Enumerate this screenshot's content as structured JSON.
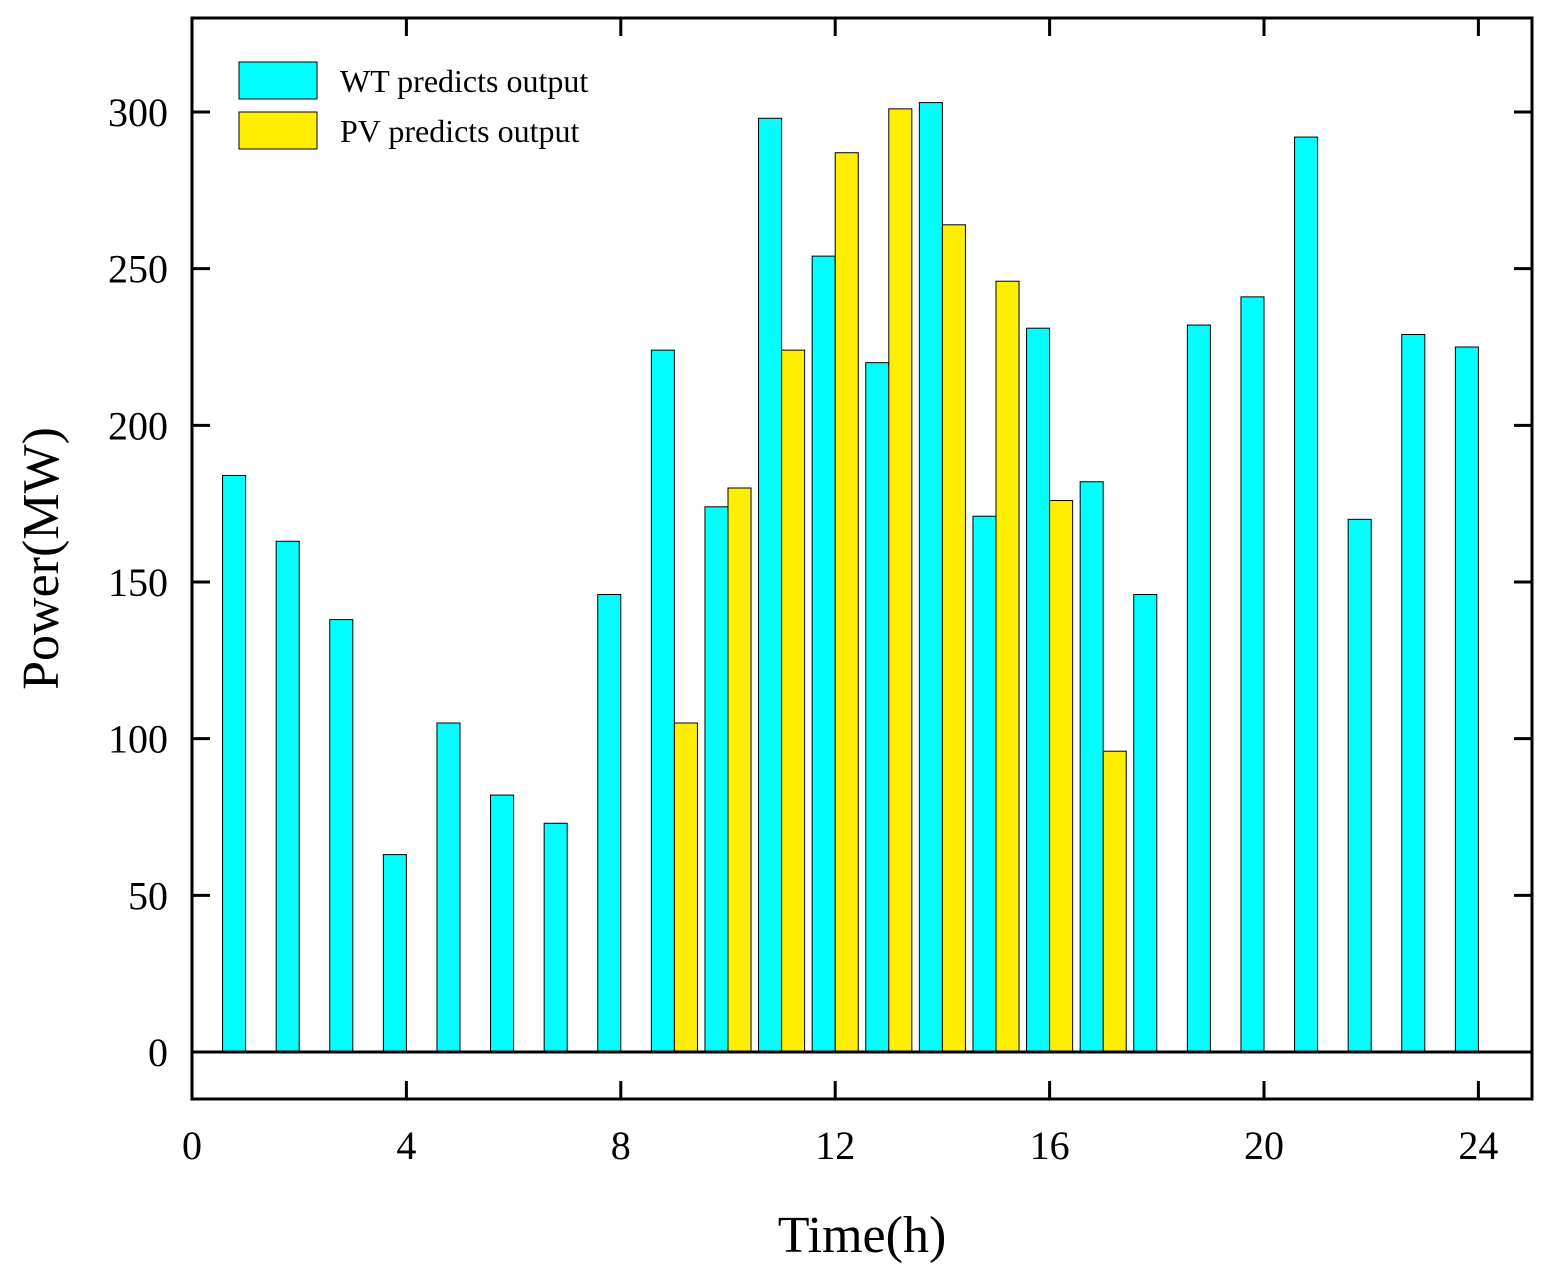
{
  "chart_data": {
    "type": "bar",
    "title": "",
    "xlabel": "Time(h)",
    "ylabel": "Power(MW)",
    "xlim": [
      0,
      25
    ],
    "ylim": [
      -15,
      330
    ],
    "xticks": [
      0,
      4,
      8,
      12,
      16,
      20,
      24
    ],
    "yticks": [
      0,
      50,
      100,
      150,
      200,
      250,
      300
    ],
    "grid": false,
    "legend_position": "top-left",
    "categories": [
      1,
      2,
      3,
      4,
      5,
      6,
      7,
      8,
      9,
      10,
      11,
      12,
      13,
      14,
      15,
      16,
      17,
      18,
      19,
      20,
      21,
      22,
      23,
      24
    ],
    "series": [
      {
        "name": "WT predicts output",
        "color": "#00FFFF",
        "values": [
          184,
          163,
          138,
          63,
          105,
          82,
          73,
          146,
          224,
          174,
          298,
          254,
          220,
          303,
          171,
          231,
          182,
          146,
          232,
          241,
          292,
          170,
          229,
          225
        ]
      },
      {
        "name": "PV predicts output",
        "color": "#FFEE00",
        "values": [
          0,
          0,
          0,
          0,
          0,
          0,
          0,
          0,
          105,
          180,
          224,
          287,
          301,
          264,
          246,
          176,
          96,
          0,
          0,
          0,
          0,
          0,
          0,
          0
        ]
      }
    ]
  }
}
